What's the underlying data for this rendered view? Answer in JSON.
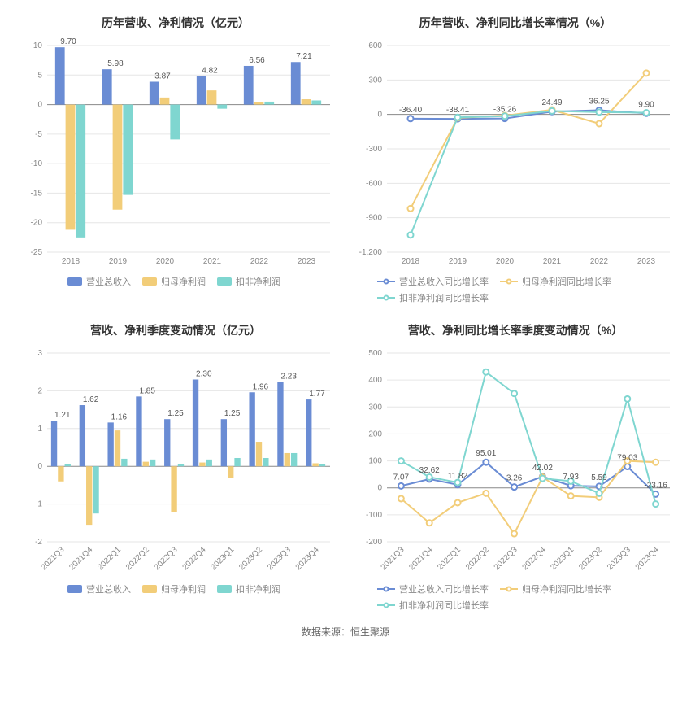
{
  "footer": "数据来源：恒生聚源",
  "colors": {
    "series1": "#6a8cd4",
    "series2": "#f2cd79",
    "series3": "#7fd6d0",
    "grid": "#e6e6e6",
    "axis": "#888888",
    "text": "#888888",
    "label": "#555555",
    "bg": "#ffffff"
  },
  "charts": [
    {
      "id": "c1",
      "type": "bar",
      "title": "历年营收、净利情况（亿元）",
      "legend_align": "center",
      "categories": [
        "2018",
        "2019",
        "2020",
        "2021",
        "2022",
        "2023"
      ],
      "ylim": [
        -25,
        10
      ],
      "yticks": [
        -25,
        -20,
        -15,
        -10,
        -5,
        0,
        5,
        10
      ],
      "bar_group_gap": 0.2,
      "bar_width": 0.22,
      "series": [
        {
          "name": "营业总收入",
          "color": "#6a8cd4",
          "values": [
            9.7,
            5.98,
            3.87,
            4.82,
            6.56,
            7.21
          ],
          "show_values": [
            9.7,
            5.98,
            3.87,
            4.82,
            6.56,
            7.21
          ]
        },
        {
          "name": "归母净利润",
          "color": "#f2cd79",
          "values": [
            -21.2,
            -17.8,
            1.2,
            2.4,
            0.4,
            0.9
          ],
          "show_values": [
            null,
            null,
            null,
            null,
            null,
            null
          ]
        },
        {
          "name": "扣非净利润",
          "color": "#7fd6d0",
          "values": [
            -22.5,
            -15.3,
            -5.9,
            -0.7,
            0.5,
            0.7
          ],
          "show_values": [
            null,
            null,
            null,
            null,
            null,
            null
          ]
        }
      ]
    },
    {
      "id": "c2",
      "type": "line",
      "title": "历年营收、净利同比增长率情况（%）",
      "legend_align": "left",
      "categories": [
        "2018",
        "2019",
        "2020",
        "2021",
        "2022",
        "2023"
      ],
      "ylim": [
        -1200,
        600
      ],
      "yticks": [
        -1200,
        -900,
        -600,
        -300,
        0,
        300,
        600
      ],
      "series": [
        {
          "name": "营业总收入同比增长率",
          "color": "#6a8cd4",
          "values": [
            -36.4,
            -38.41,
            -35.26,
            24.49,
            36.25,
            9.9
          ],
          "show_values": [
            -36.4,
            -38.41,
            -35.26,
            24.49,
            36.25,
            9.9
          ]
        },
        {
          "name": "归母净利润同比增长率",
          "color": "#f2cd79",
          "values": [
            -820,
            -30,
            -10,
            40,
            -80,
            360
          ],
          "show_values": [
            null,
            null,
            null,
            null,
            null,
            null
          ]
        },
        {
          "name": "扣非净利润同比增长率",
          "color": "#7fd6d0",
          "values": [
            -1050,
            -25,
            -15,
            30,
            20,
            15
          ],
          "show_values": [
            null,
            null,
            null,
            null,
            null,
            null
          ]
        }
      ]
    },
    {
      "id": "c3",
      "type": "bar",
      "title": "营收、净利季度变动情况（亿元）",
      "legend_align": "center",
      "categories": [
        "2021Q3",
        "2021Q4",
        "2022Q1",
        "2022Q2",
        "2022Q3",
        "2022Q4",
        "2023Q1",
        "2023Q2",
        "2023Q3",
        "2023Q4"
      ],
      "x_rotate": -45,
      "ylim": [
        -2,
        3
      ],
      "yticks": [
        -2,
        -1,
        0,
        1,
        2,
        3
      ],
      "bar_group_gap": 0.14,
      "bar_width": 0.24,
      "series": [
        {
          "name": "营业总收入",
          "color": "#6a8cd4",
          "values": [
            1.21,
            1.62,
            1.16,
            1.85,
            1.25,
            2.3,
            1.25,
            1.96,
            2.23,
            1.77
          ],
          "show_values": [
            1.21,
            1.62,
            1.16,
            1.85,
            1.25,
            2.3,
            1.25,
            1.96,
            2.23,
            1.77
          ]
        },
        {
          "name": "归母净利润",
          "color": "#f2cd79",
          "values": [
            -0.4,
            -1.55,
            0.95,
            0.12,
            -1.22,
            0.1,
            -0.3,
            0.65,
            0.35,
            0.08
          ],
          "show_values": [
            null,
            null,
            null,
            null,
            null,
            null,
            null,
            null,
            null,
            null
          ]
        },
        {
          "name": "扣非净利润",
          "color": "#7fd6d0",
          "values": [
            0.05,
            -1.25,
            0.2,
            0.18,
            0.05,
            0.18,
            0.22,
            0.22,
            0.35,
            0.06
          ],
          "show_values": [
            null,
            null,
            null,
            null,
            null,
            null,
            null,
            null,
            null,
            null
          ]
        }
      ]
    },
    {
      "id": "c4",
      "type": "line",
      "title": "营收、净利同比增长率季度变动情况（%）",
      "legend_align": "left",
      "categories": [
        "2021Q3",
        "2021Q4",
        "2022Q1",
        "2022Q2",
        "2022Q3",
        "2022Q4",
        "2023Q1",
        "2023Q2",
        "2023Q3",
        "2023Q4"
      ],
      "x_rotate": -45,
      "ylim": [
        -200,
        500
      ],
      "yticks": [
        -200,
        -100,
        0,
        100,
        200,
        300,
        400,
        500
      ],
      "series": [
        {
          "name": "营业总收入同比增长率",
          "color": "#6a8cd4",
          "values": [
            7.07,
            32.62,
            11.82,
            95.01,
            3.26,
            42.02,
            7.93,
            5.59,
            79.03,
            -23.16
          ],
          "show_values": [
            7.07,
            32.62,
            11.82,
            95.01,
            3.26,
            42.02,
            7.93,
            5.59,
            79.03,
            -23.16
          ]
        },
        {
          "name": "归母净利润同比增长率",
          "color": "#f2cd79",
          "values": [
            -40,
            -130,
            -55,
            -20,
            -170,
            40,
            -30,
            -35,
            100,
            95
          ],
          "show_values": [
            null,
            null,
            null,
            null,
            null,
            null,
            null,
            null,
            null,
            null
          ]
        },
        {
          "name": "扣非净利润同比增长率",
          "color": "#7fd6d0",
          "values": [
            100,
            40,
            20,
            430,
            350,
            35,
            25,
            -20,
            330,
            -60
          ],
          "show_values": [
            null,
            null,
            null,
            null,
            null,
            null,
            null,
            null,
            null,
            null
          ]
        }
      ]
    }
  ]
}
